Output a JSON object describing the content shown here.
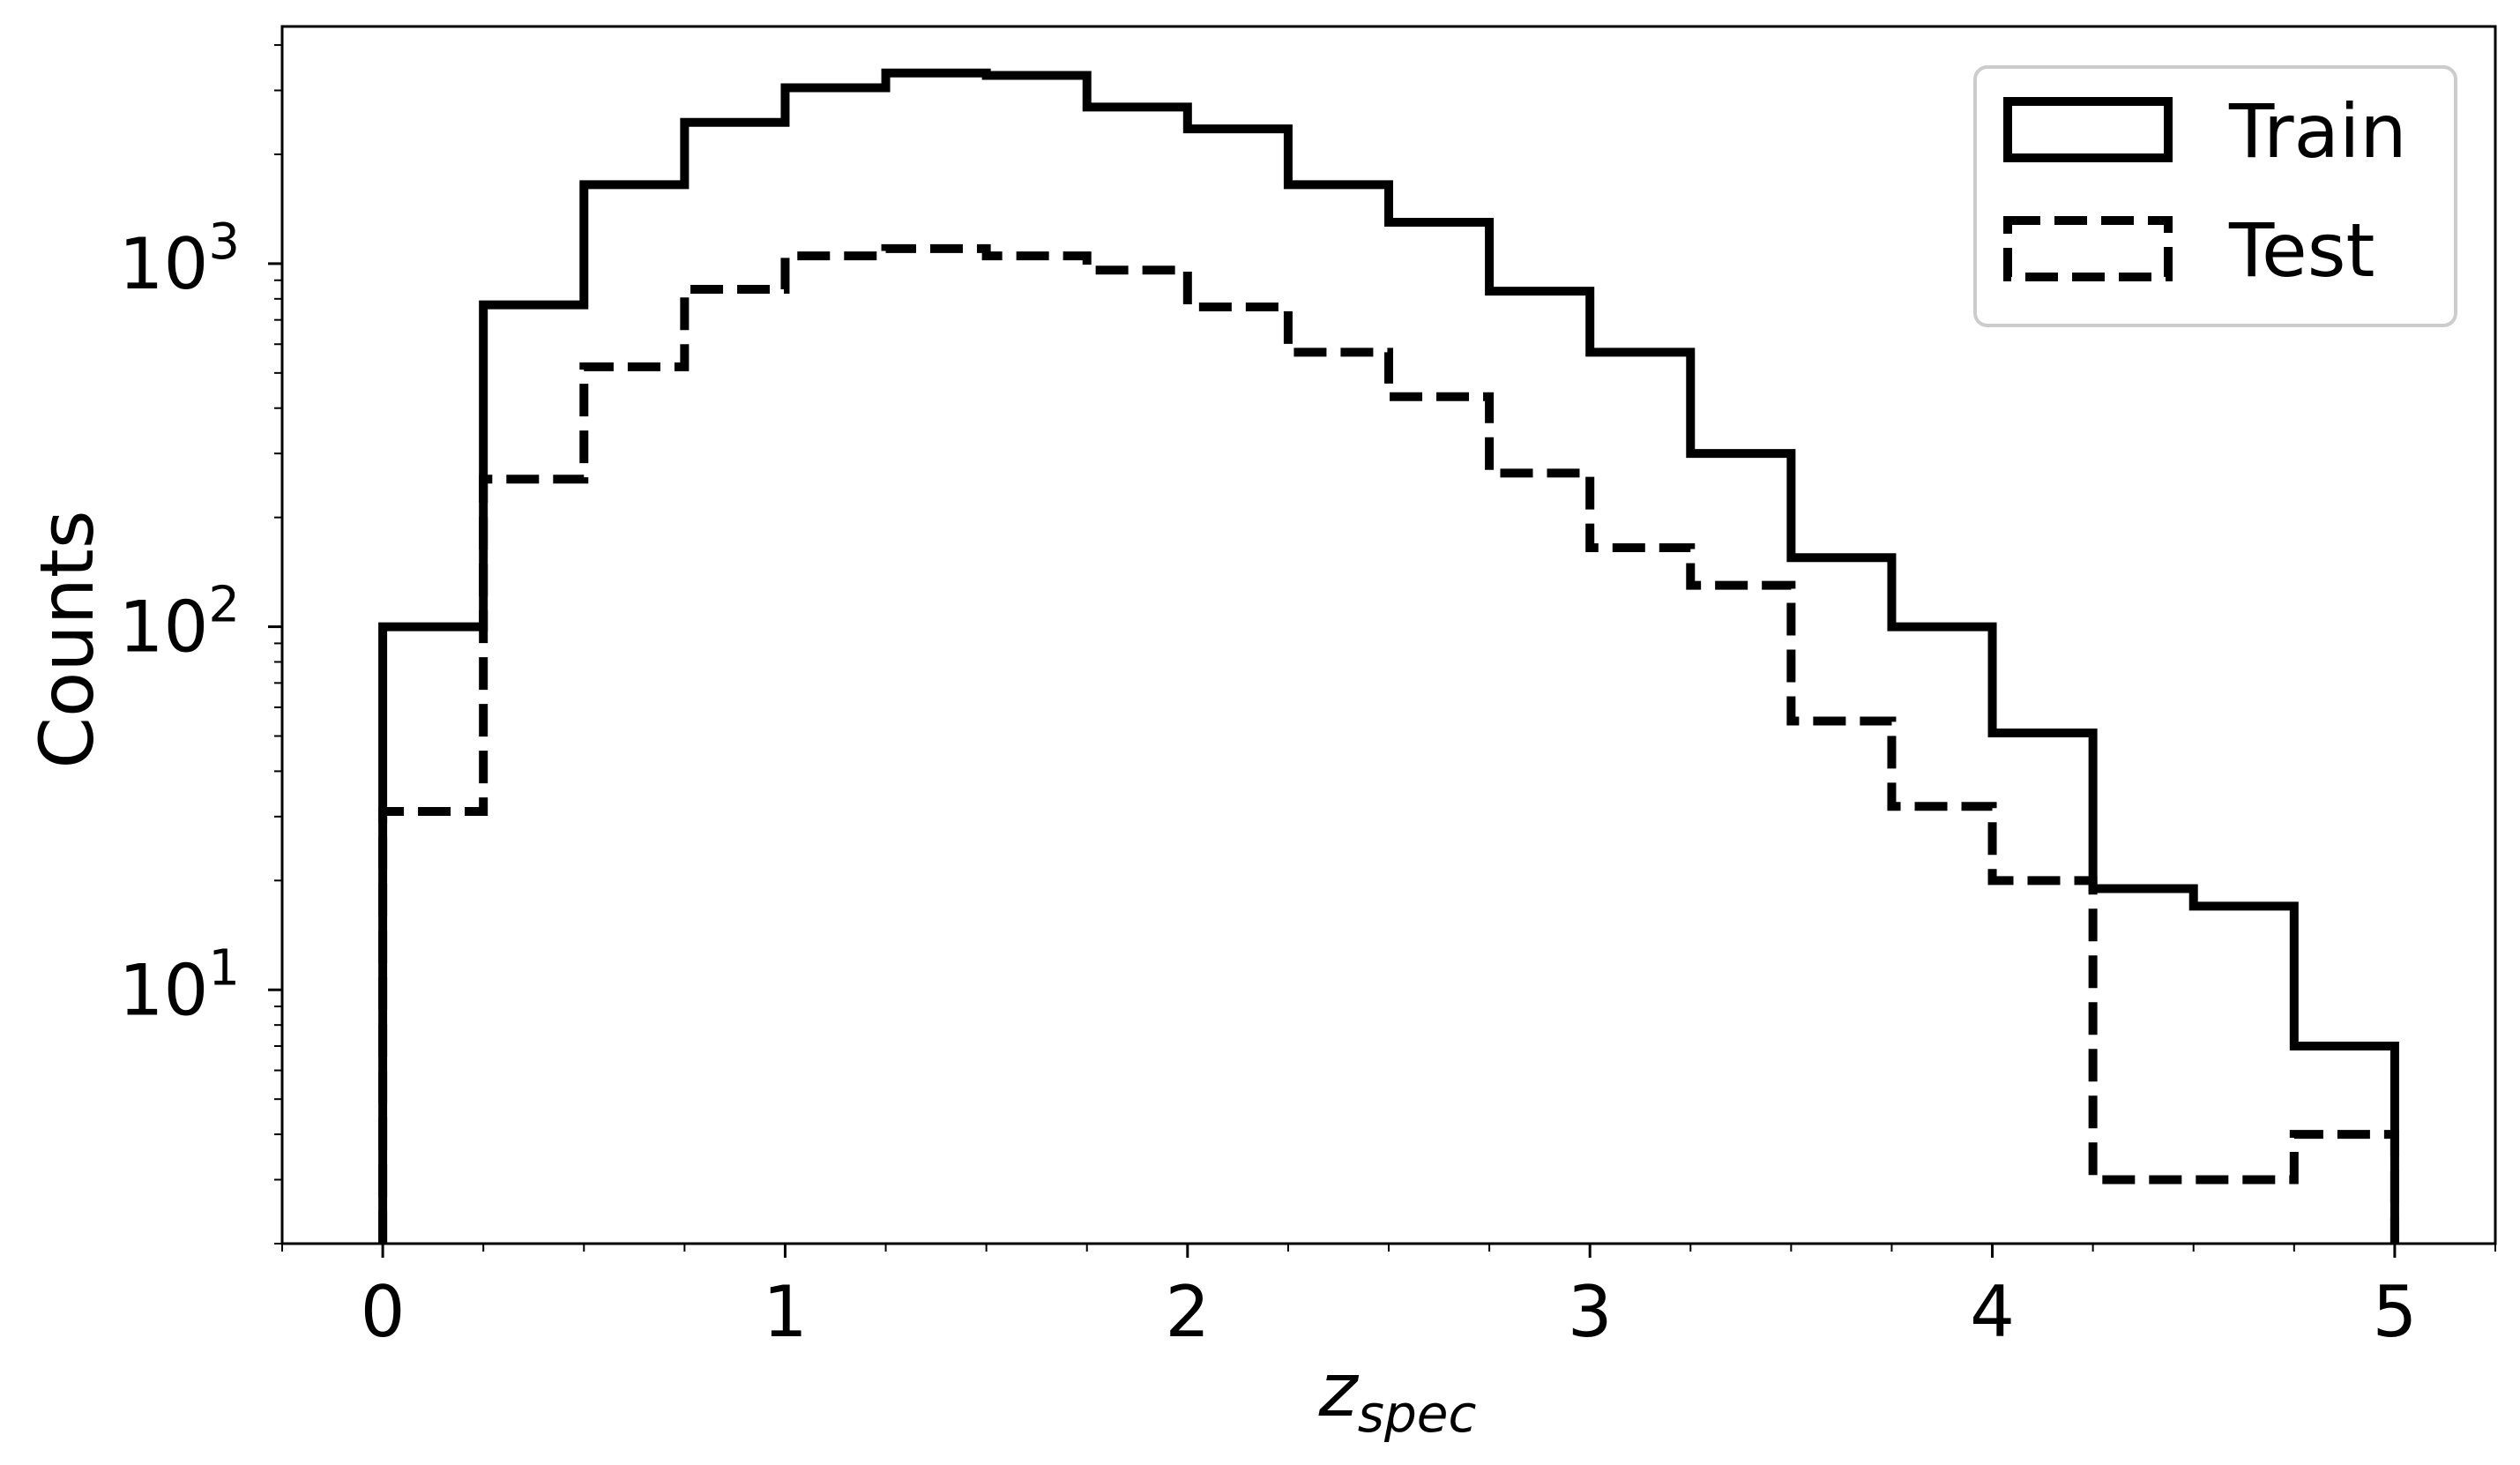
{
  "chart_data": {
    "type": "histogram",
    "xlabel": {
      "main": "z",
      "sub": "spec"
    },
    "ylabel": "Counts",
    "yscale": "log",
    "xlim": [
      -0.25,
      5.25
    ],
    "ylim": [
      2,
      4500
    ],
    "bin_edges": [
      0,
      0.25,
      0.5,
      0.75,
      1.0,
      1.25,
      1.5,
      1.75,
      2.0,
      2.25,
      2.5,
      2.75,
      3.0,
      3.25,
      3.5,
      3.75,
      4.0,
      4.25,
      4.5,
      4.75,
      5.0
    ],
    "x_ticks": [
      "0",
      "1",
      "2",
      "3",
      "4",
      "5"
    ],
    "y_ticks": [
      {
        "value": 10,
        "base": "10",
        "exp": "1"
      },
      {
        "value": 100,
        "base": "10",
        "exp": "2"
      },
      {
        "value": 1000,
        "base": "10",
        "exp": "3"
      }
    ],
    "legend": {
      "position": "top-right"
    },
    "series": [
      {
        "name": "Train",
        "style": "solid",
        "color": "#000000",
        "values": [
          100,
          770,
          1650,
          2450,
          3050,
          3350,
          3300,
          2700,
          2350,
          1650,
          1300,
          840,
          570,
          300,
          155,
          100,
          51,
          19,
          17,
          7
        ]
      },
      {
        "name": "Test",
        "style": "dashed",
        "color": "#000000",
        "values": [
          31,
          255,
          520,
          850,
          1050,
          1100,
          1050,
          960,
          760,
          570,
          430,
          265,
          165,
          130,
          55,
          32,
          20,
          3,
          3,
          4
        ]
      }
    ]
  }
}
